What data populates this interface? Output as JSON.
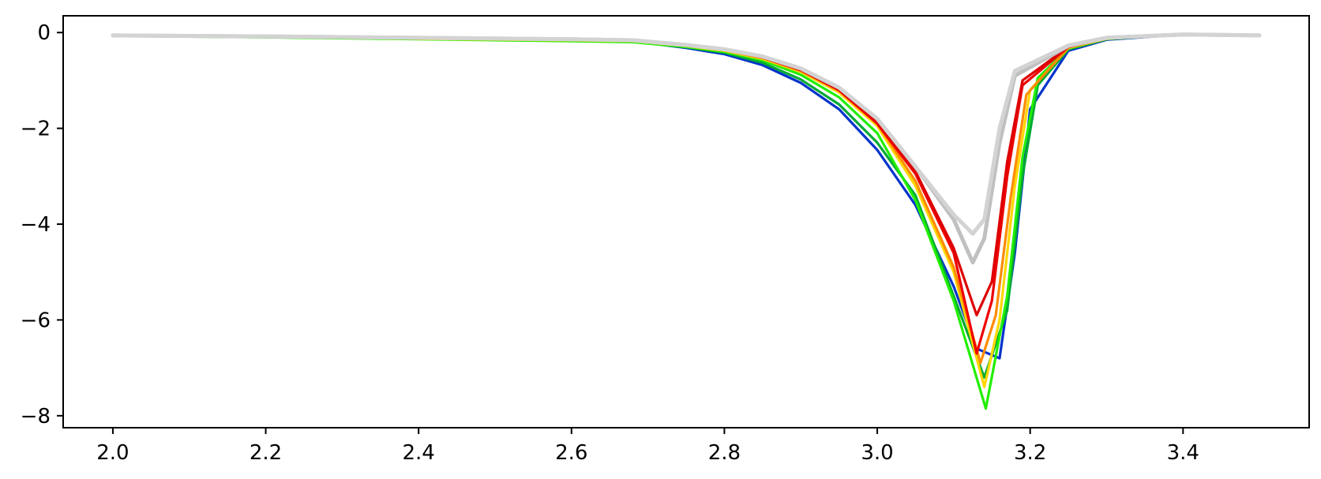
{
  "chart_data": {
    "type": "line",
    "title": "",
    "xlabel": "",
    "ylabel": "",
    "xlim": [
      1.935,
      3.565
    ],
    "ylim": [
      -8.25,
      0.35
    ],
    "xticks": [
      2.0,
      2.2,
      2.4,
      2.6,
      2.8,
      3.0,
      3.2,
      3.4
    ],
    "xtick_labels": [
      "2.0",
      "2.2",
      "2.4",
      "2.6",
      "2.8",
      "3.0",
      "3.2",
      "3.4"
    ],
    "yticks": [
      0,
      -2,
      -4,
      -6,
      -8
    ],
    "ytick_labels": [
      "0",
      "−2",
      "−4",
      "−6",
      "−8"
    ],
    "grid": false,
    "legend": "none",
    "series": [
      {
        "color": "#0033cc",
        "x": [
          2.0,
          2.2,
          2.4,
          2.6,
          2.68,
          2.75,
          2.8,
          2.85,
          2.9,
          2.95,
          3.0,
          3.05,
          3.1,
          3.13,
          3.16,
          3.18,
          3.2,
          3.25,
          3.3,
          3.4,
          3.5
        ],
        "y": [
          -0.05,
          -0.08,
          -0.12,
          -0.16,
          -0.18,
          -0.32,
          -0.45,
          -0.68,
          -1.05,
          -1.6,
          -2.45,
          -3.6,
          -5.3,
          -6.6,
          -6.8,
          -4.6,
          -1.6,
          -0.38,
          -0.15,
          -0.04,
          -0.06
        ]
      },
      {
        "color": "#00aa33",
        "x": [
          2.0,
          2.2,
          2.4,
          2.6,
          2.68,
          2.75,
          2.8,
          2.85,
          2.9,
          2.95,
          3.0,
          3.05,
          3.1,
          3.14,
          3.17,
          3.19,
          3.21,
          3.25,
          3.3,
          3.4,
          3.5
        ],
        "y": [
          -0.06,
          -0.09,
          -0.13,
          -0.17,
          -0.19,
          -0.3,
          -0.42,
          -0.63,
          -0.98,
          -1.5,
          -2.3,
          -3.4,
          -5.5,
          -7.2,
          -5.8,
          -3.0,
          -1.1,
          -0.35,
          -0.14,
          -0.04,
          -0.06
        ]
      },
      {
        "color": "#22ee00",
        "x": [
          2.0,
          2.2,
          2.4,
          2.6,
          2.68,
          2.75,
          2.8,
          2.85,
          2.9,
          2.95,
          3.0,
          3.05,
          3.1,
          3.142,
          3.17,
          3.19,
          3.21,
          3.25,
          3.3,
          3.4,
          3.5
        ],
        "y": [
          -0.07,
          -0.1,
          -0.14,
          -0.18,
          -0.2,
          -0.3,
          -0.4,
          -0.58,
          -0.88,
          -1.35,
          -2.1,
          -3.5,
          -5.6,
          -7.85,
          -5.5,
          -2.6,
          -0.95,
          -0.33,
          -0.13,
          -0.04,
          -0.06
        ]
      },
      {
        "color": "#ffd700",
        "x": [
          2.0,
          2.2,
          2.4,
          2.6,
          2.68,
          2.75,
          2.8,
          2.85,
          2.9,
          2.95,
          3.0,
          3.05,
          3.1,
          3.14,
          3.16,
          3.18,
          3.2,
          3.25,
          3.3,
          3.4,
          3.5
        ],
        "y": [
          -0.06,
          -0.09,
          -0.13,
          -0.16,
          -0.18,
          -0.28,
          -0.38,
          -0.55,
          -0.82,
          -1.25,
          -1.95,
          -3.2,
          -5.0,
          -7.4,
          -6.0,
          -3.2,
          -1.2,
          -0.32,
          -0.13,
          -0.04,
          -0.06
        ]
      },
      {
        "color": "#ff8c00",
        "x": [
          2.0,
          2.2,
          2.4,
          2.6,
          2.68,
          2.75,
          2.8,
          2.85,
          2.9,
          2.95,
          3.0,
          3.05,
          3.1,
          3.135,
          3.155,
          3.175,
          3.195,
          3.25,
          3.3,
          3.4,
          3.5
        ],
        "y": [
          -0.06,
          -0.09,
          -0.12,
          -0.15,
          -0.17,
          -0.27,
          -0.37,
          -0.53,
          -0.8,
          -1.22,
          -1.9,
          -3.1,
          -4.9,
          -6.9,
          -5.9,
          -3.4,
          -1.3,
          -0.31,
          -0.12,
          -0.04,
          -0.06
        ]
      },
      {
        "color": "#ee0000",
        "x": [
          2.0,
          2.2,
          2.4,
          2.6,
          2.68,
          2.75,
          2.8,
          2.85,
          2.9,
          2.95,
          3.0,
          3.05,
          3.1,
          3.13,
          3.15,
          3.17,
          3.19,
          3.25,
          3.3,
          3.4,
          3.5
        ],
        "y": [
          -0.07,
          -0.09,
          -0.12,
          -0.15,
          -0.17,
          -0.27,
          -0.36,
          -0.52,
          -0.78,
          -1.2,
          -1.9,
          -2.95,
          -4.6,
          -6.7,
          -5.6,
          -3.0,
          -1.1,
          -0.3,
          -0.12,
          -0.04,
          -0.06
        ]
      },
      {
        "color": "#dd0000",
        "x": [
          2.0,
          2.2,
          2.4,
          2.6,
          2.68,
          2.75,
          2.8,
          2.85,
          2.9,
          2.95,
          3.0,
          3.05,
          3.1,
          3.13,
          3.15,
          3.17,
          3.19,
          3.25,
          3.3,
          3.4,
          3.5
        ],
        "y": [
          -0.07,
          -0.09,
          -0.12,
          -0.15,
          -0.17,
          -0.27,
          -0.36,
          -0.52,
          -0.78,
          -1.18,
          -1.85,
          -2.9,
          -4.5,
          -5.9,
          -5.2,
          -2.7,
          -1.0,
          -0.3,
          -0.12,
          -0.04,
          -0.06
        ]
      },
      {
        "color": "#c0c0c0",
        "x": [
          2.0,
          2.2,
          2.4,
          2.6,
          2.68,
          2.75,
          2.8,
          2.85,
          2.9,
          2.95,
          3.0,
          3.05,
          3.1,
          3.125,
          3.14,
          3.16,
          3.18,
          3.25,
          3.3,
          3.4,
          3.5
        ],
        "y": [
          -0.06,
          -0.08,
          -0.11,
          -0.14,
          -0.16,
          -0.26,
          -0.35,
          -0.5,
          -0.75,
          -1.15,
          -1.8,
          -2.8,
          -3.9,
          -4.8,
          -4.3,
          -2.3,
          -0.9,
          -0.28,
          -0.11,
          -0.04,
          -0.06
        ]
      },
      {
        "color": "#d3d3d3",
        "x": [
          2.0,
          2.2,
          2.4,
          2.6,
          2.68,
          2.75,
          2.8,
          2.85,
          2.9,
          2.95,
          3.0,
          3.05,
          3.1,
          3.125,
          3.14,
          3.16,
          3.18,
          3.25,
          3.3,
          3.4,
          3.5
        ],
        "y": [
          -0.06,
          -0.08,
          -0.11,
          -0.14,
          -0.16,
          -0.26,
          -0.35,
          -0.5,
          -0.75,
          -1.15,
          -1.8,
          -2.8,
          -3.8,
          -4.2,
          -3.9,
          -2.0,
          -0.8,
          -0.27,
          -0.11,
          -0.04,
          -0.06
        ]
      }
    ]
  }
}
